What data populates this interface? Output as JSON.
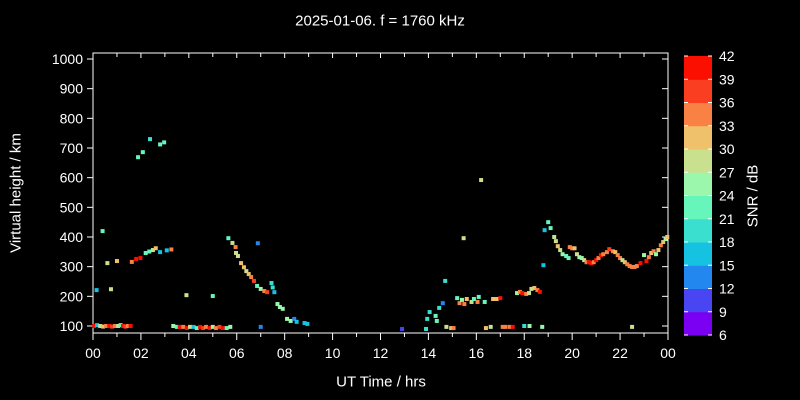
{
  "title": "2025-01-06. f = 1760 kHz",
  "chart_data": {
    "type": "scatter",
    "title": "2025-01-06. f = 1760 kHz",
    "xlabel": "UT Time / hrs",
    "ylabel": "Virtual height / km",
    "xlim": [
      0,
      24
    ],
    "x_tick_labels": [
      "00",
      "02",
      "04",
      "06",
      "08",
      "10",
      "12",
      "14",
      "16",
      "18",
      "20",
      "22",
      "00"
    ],
    "ylim": [
      100,
      1000
    ],
    "y_ticks": [
      100,
      200,
      300,
      400,
      500,
      600,
      700,
      800,
      900,
      1000
    ],
    "grid": false,
    "background": "#000000",
    "axis_color": "#ffffff",
    "colorbar": {
      "label": "SNR / dB",
      "values": [
        6,
        9,
        12,
        15,
        18,
        21,
        24,
        27,
        30,
        33,
        36,
        39,
        42
      ],
      "colors": [
        "#7B00F3",
        "#4A45F3",
        "#2387F0",
        "#16C2E1",
        "#3BDFD0",
        "#66F6BC",
        "#9BF7AC",
        "#C9E08E",
        "#F0C16B",
        "#F98143",
        "#F93E22",
        "#FB0F00"
      ]
    },
    "points_format": [
      "ut_hours",
      "virtual_height_km",
      "snr_db"
    ],
    "points": [
      [
        0.05,
        100,
        40
      ],
      [
        0.17,
        103,
        16
      ],
      [
        0.3,
        100,
        28
      ],
      [
        0.42,
        98,
        31
      ],
      [
        0.55,
        100,
        34
      ],
      [
        0.68,
        100,
        40
      ],
      [
        0.8,
        98,
        37
      ],
      [
        0.92,
        100,
        34
      ],
      [
        1.05,
        100,
        28
      ],
      [
        1.15,
        103,
        22
      ],
      [
        1.25,
        100,
        40
      ],
      [
        1.35,
        98,
        37
      ],
      [
        1.45,
        100,
        34
      ],
      [
        1.57,
        100,
        40
      ],
      [
        0.15,
        221,
        16
      ],
      [
        0.4,
        420,
        22
      ],
      [
        0.6,
        312,
        28
      ],
      [
        0.75,
        224,
        28
      ],
      [
        1.0,
        319,
        31
      ],
      [
        1.62,
        316,
        34
      ],
      [
        1.8,
        326,
        40
      ],
      [
        1.98,
        329,
        40
      ],
      [
        2.2,
        346,
        22
      ],
      [
        2.35,
        351,
        22
      ],
      [
        2.5,
        356,
        28
      ],
      [
        2.62,
        362,
        31
      ],
      [
        2.8,
        349,
        16
      ],
      [
        3.08,
        355,
        16
      ],
      [
        3.27,
        358,
        34
      ],
      [
        1.88,
        669,
        22
      ],
      [
        2.08,
        686,
        22
      ],
      [
        2.38,
        730,
        19
      ],
      [
        2.8,
        712,
        22
      ],
      [
        2.97,
        719,
        22
      ],
      [
        3.35,
        100,
        25
      ],
      [
        3.5,
        97,
        22
      ],
      [
        3.62,
        97,
        40
      ],
      [
        3.77,
        97,
        34
      ],
      [
        3.92,
        93,
        40
      ],
      [
        4.05,
        97,
        28
      ],
      [
        4.2,
        97,
        16
      ],
      [
        4.33,
        93,
        22
      ],
      [
        4.47,
        97,
        40
      ],
      [
        4.6,
        93,
        37
      ],
      [
        4.72,
        97,
        34
      ],
      [
        4.87,
        93,
        40
      ],
      [
        5.0,
        97,
        25
      ],
      [
        5.13,
        93,
        34
      ],
      [
        5.28,
        97,
        37
      ],
      [
        5.42,
        93,
        40
      ],
      [
        5.58,
        93,
        22
      ],
      [
        5.73,
        97,
        25
      ],
      [
        3.9,
        204,
        28
      ],
      [
        5.0,
        201,
        22
      ],
      [
        5.65,
        396,
        22
      ],
      [
        5.82,
        380,
        28
      ],
      [
        5.95,
        366,
        34
      ],
      [
        5.97,
        346,
        28
      ],
      [
        6.05,
        336,
        28
      ],
      [
        6.18,
        312,
        31
      ],
      [
        6.3,
        298,
        31
      ],
      [
        6.4,
        285,
        28
      ],
      [
        6.5,
        275,
        31
      ],
      [
        6.6,
        265,
        34
      ],
      [
        6.72,
        252,
        37
      ],
      [
        6.85,
        235,
        22
      ],
      [
        7.0,
        225,
        25
      ],
      [
        7.15,
        218,
        34
      ],
      [
        7.27,
        214,
        37
      ],
      [
        7.45,
        245,
        19
      ],
      [
        7.5,
        230,
        19
      ],
      [
        7.57,
        214,
        16
      ],
      [
        7.7,
        174,
        25
      ],
      [
        7.8,
        164,
        25
      ],
      [
        7.92,
        158,
        25
      ],
      [
        8.1,
        124,
        25
      ],
      [
        8.25,
        117,
        25
      ],
      [
        8.4,
        124,
        13
      ],
      [
        8.5,
        114,
        16
      ],
      [
        8.83,
        110,
        16
      ],
      [
        8.95,
        107,
        16
      ],
      [
        6.88,
        379,
        13
      ],
      [
        7.0,
        97,
        13
      ],
      [
        12.9,
        90,
        10
      ],
      [
        13.9,
        90,
        19
      ],
      [
        13.95,
        124,
        19
      ],
      [
        14.05,
        147,
        19
      ],
      [
        14.3,
        134,
        22
      ],
      [
        14.35,
        117,
        22
      ],
      [
        14.45,
        161,
        19
      ],
      [
        14.6,
        177,
        13
      ],
      [
        14.7,
        252,
        19
      ],
      [
        14.75,
        97,
        28
      ],
      [
        14.95,
        93,
        31
      ],
      [
        15.05,
        93,
        34
      ],
      [
        15.2,
        194,
        22
      ],
      [
        15.3,
        177,
        34
      ],
      [
        15.4,
        188,
        25
      ],
      [
        15.47,
        396,
        28
      ],
      [
        15.5,
        174,
        34
      ],
      [
        15.6,
        191,
        31
      ],
      [
        15.8,
        181,
        28
      ],
      [
        15.9,
        191,
        22
      ],
      [
        16.05,
        181,
        34
      ],
      [
        16.1,
        198,
        22
      ],
      [
        16.2,
        592,
        28
      ],
      [
        16.35,
        181,
        22
      ],
      [
        16.4,
        93,
        31
      ],
      [
        16.6,
        97,
        28
      ],
      [
        16.7,
        191,
        31
      ],
      [
        16.85,
        191,
        31
      ],
      [
        17.0,
        194,
        40
      ],
      [
        17.1,
        97,
        34
      ],
      [
        17.22,
        97,
        34
      ],
      [
        17.4,
        97,
        34
      ],
      [
        17.52,
        97,
        40
      ],
      [
        17.7,
        211,
        25
      ],
      [
        17.82,
        215,
        34
      ],
      [
        17.92,
        211,
        40
      ],
      [
        18.0,
        100,
        19
      ],
      [
        18.08,
        208,
        34
      ],
      [
        18.2,
        211,
        28
      ],
      [
        18.22,
        100,
        25
      ],
      [
        18.3,
        225,
        28
      ],
      [
        18.42,
        228,
        31
      ],
      [
        18.55,
        221,
        34
      ],
      [
        18.65,
        215,
        40
      ],
      [
        18.75,
        97,
        25
      ],
      [
        18.8,
        305,
        16
      ],
      [
        18.85,
        423,
        16
      ],
      [
        19.0,
        450,
        22
      ],
      [
        19.1,
        430,
        22
      ],
      [
        19.25,
        400,
        28
      ],
      [
        19.32,
        386,
        28
      ],
      [
        19.4,
        369,
        31
      ],
      [
        19.5,
        356,
        28
      ],
      [
        19.6,
        342,
        25
      ],
      [
        19.75,
        336,
        22
      ],
      [
        19.85,
        329,
        22
      ],
      [
        19.9,
        366,
        34
      ],
      [
        20.0,
        362,
        34
      ],
      [
        20.1,
        362,
        31
      ],
      [
        20.2,
        342,
        28
      ],
      [
        20.3,
        332,
        25
      ],
      [
        20.4,
        329,
        25
      ],
      [
        20.5,
        322,
        28
      ],
      [
        20.6,
        315,
        34
      ],
      [
        20.7,
        315,
        40
      ],
      [
        20.8,
        312,
        40
      ],
      [
        20.9,
        315,
        34
      ],
      [
        21.0,
        322,
        40
      ],
      [
        21.1,
        329,
        34
      ],
      [
        21.2,
        339,
        40
      ],
      [
        21.3,
        342,
        34
      ],
      [
        21.45,
        349,
        34
      ],
      [
        21.55,
        359,
        37
      ],
      [
        21.7,
        352,
        34
      ],
      [
        21.8,
        349,
        31
      ],
      [
        21.9,
        339,
        34
      ],
      [
        22.0,
        329,
        34
      ],
      [
        22.1,
        322,
        28
      ],
      [
        22.2,
        315,
        31
      ],
      [
        22.3,
        308,
        34
      ],
      [
        22.4,
        302,
        34
      ],
      [
        22.5,
        299,
        34
      ],
      [
        22.6,
        299,
        34
      ],
      [
        22.7,
        302,
        34
      ],
      [
        22.85,
        312,
        40
      ],
      [
        23.0,
        339,
        25
      ],
      [
        23.1,
        319,
        40
      ],
      [
        23.2,
        332,
        34
      ],
      [
        23.3,
        346,
        31
      ],
      [
        23.4,
        352,
        34
      ],
      [
        23.5,
        342,
        25
      ],
      [
        23.6,
        356,
        31
      ],
      [
        23.7,
        372,
        34
      ],
      [
        23.8,
        383,
        31
      ],
      [
        23.9,
        393,
        25
      ],
      [
        23.97,
        400,
        31
      ],
      [
        22.5,
        97,
        28
      ]
    ]
  }
}
